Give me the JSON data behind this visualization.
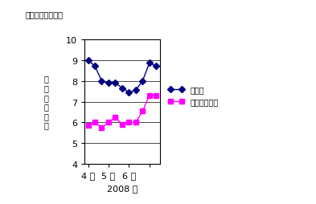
{
  "wheat_x": [
    1,
    2,
    3,
    4,
    5,
    6,
    7,
    8,
    9,
    10,
    11
  ],
  "wheat_y": [
    9.0,
    8.7,
    8.0,
    7.9,
    7.9,
    7.65,
    7.45,
    7.55,
    8.0,
    8.85,
    8.7
  ],
  "corn_x": [
    1,
    2,
    3,
    4,
    5,
    6,
    7,
    8,
    9,
    10,
    11
  ],
  "corn_y": [
    5.85,
    6.0,
    5.75,
    6.0,
    6.25,
    5.9,
    6.0,
    6.0,
    6.55,
    7.3,
    7.3
  ],
  "wheat_color": "#000080",
  "corn_color": "#ff00ff",
  "ylabel_text": "先\n物\n相\n場\n価\n格",
  "xlabel_text": "2008 年",
  "top_label": "ドル／ブッシェル",
  "legend_wheat": "コムギ",
  "legend_corn": "トウモロコシ",
  "ylim": [
    4,
    10
  ],
  "yticks": [
    4,
    5,
    6,
    7,
    8,
    9,
    10
  ],
  "xtick_positions": [
    1,
    4,
    7,
    10
  ],
  "xtick_labels": [
    "4 月",
    "5 月",
    "6 月",
    ""
  ],
  "background_color": "#ffffff",
  "grid_color": "#000000"
}
